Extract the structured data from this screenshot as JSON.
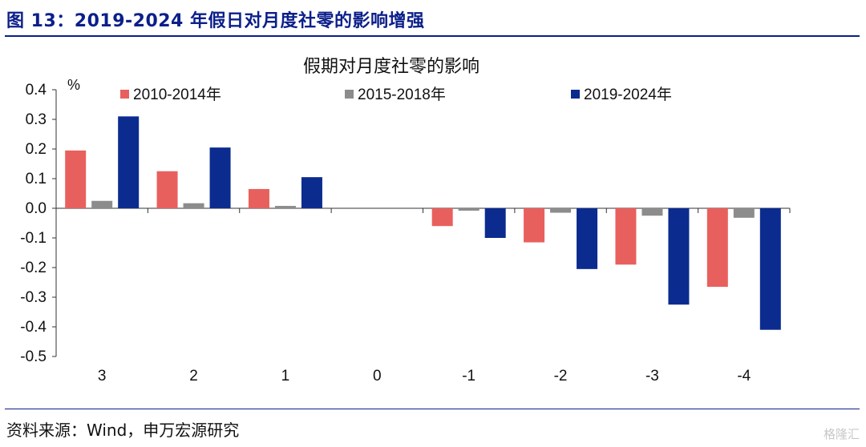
{
  "figure": {
    "title": "图 13：2019-2024 年假日对月度社零的影响增强",
    "source": "资料来源：Wind，申万宏源研究",
    "watermark": "格隆汇"
  },
  "colors": {
    "accent": "#0b1f8a",
    "series_2010_2014": "#e8605d",
    "series_2015_2018": "#8c8c8c",
    "series_2019_2024": "#0b2b8f"
  },
  "chart_data": {
    "type": "bar",
    "title": "假期对月度社零的影响",
    "ylabel": "%",
    "xlabel": "",
    "categories": [
      "3",
      "2",
      "1",
      "0",
      "-1",
      "-2",
      "-3",
      "-4"
    ],
    "series": [
      {
        "name": "2010-2014年",
        "values": [
          0.195,
          0.125,
          0.065,
          0,
          -0.06,
          -0.115,
          -0.19,
          -0.265
        ]
      },
      {
        "name": "2015-2018年",
        "values": [
          0.025,
          0.017,
          0.008,
          0,
          -0.008,
          -0.015,
          -0.025,
          -0.032
        ]
      },
      {
        "name": "2019-2024年",
        "values": [
          0.31,
          0.205,
          0.105,
          0,
          -0.1,
          -0.205,
          -0.325,
          -0.41
        ]
      }
    ],
    "ylim": [
      -0.5,
      0.4
    ],
    "yticks": [
      0.4,
      0.3,
      0.2,
      0.1,
      0.0,
      -0.1,
      -0.2,
      -0.3,
      -0.4,
      -0.5
    ],
    "ytick_labels": [
      "0.4",
      "0.3",
      "0.2",
      "0.1",
      "0.0",
      "-0.1",
      "-0.2",
      "-0.3",
      "-0.4",
      "-0.5"
    ],
    "legend_position": "top",
    "grid": false
  }
}
